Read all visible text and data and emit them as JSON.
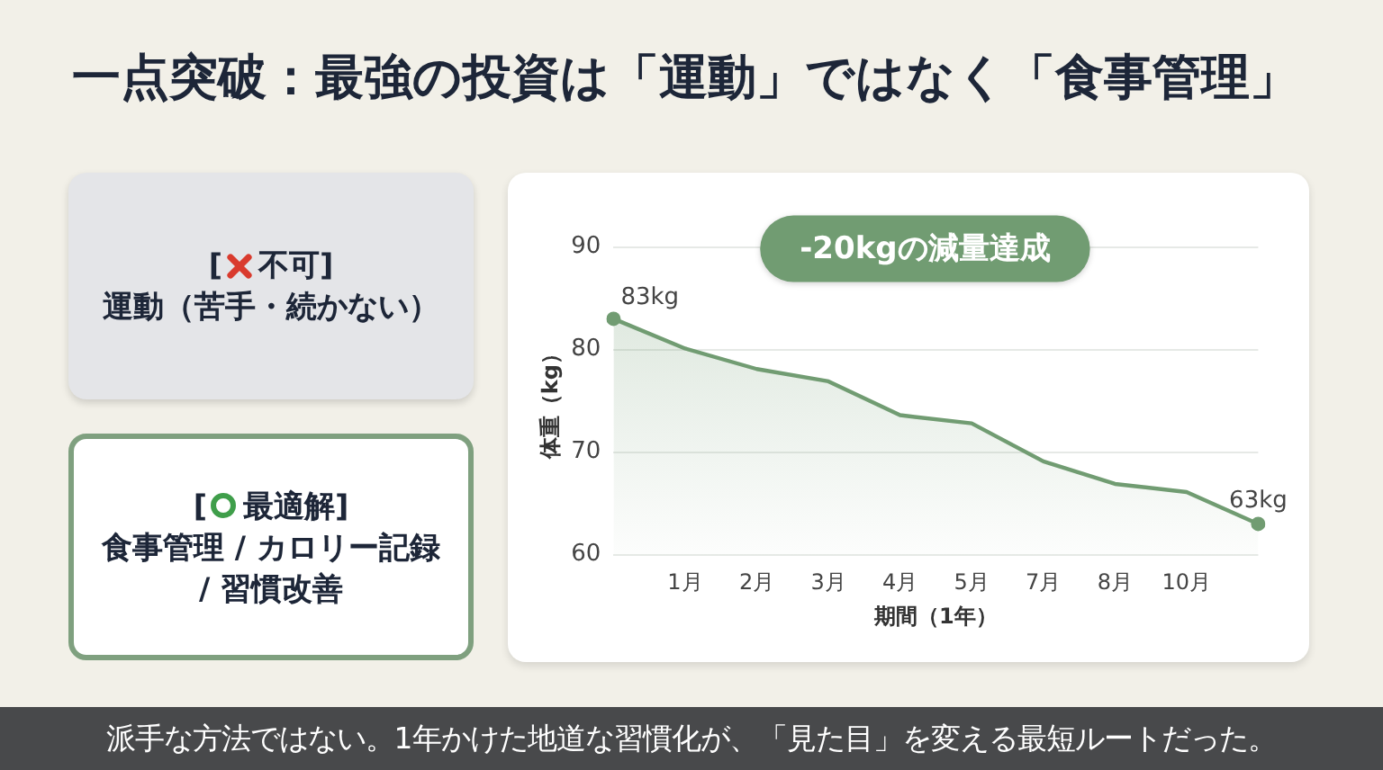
{
  "chart_data": [
    {
      "type": "other",
      "title": "一点突破：最強の投資は「運動」ではなく「食事管理」",
      "annotations": [
        "[不可]",
        "運動（苦手・続かない）",
        "[最適解]",
        "食事管理 / カロリー記録 / 習慣改善"
      ]
    },
    {
      "type": "area",
      "categories": [
        null,
        "1月",
        "2月",
        "3月",
        "4月",
        "5月",
        "7月",
        "8月",
        "10月",
        null
      ],
      "values": [
        83,
        80.1,
        78.1,
        76.9,
        73.6,
        72.8,
        69.1,
        66.9,
        66.1,
        63
      ],
      "value_labels": [
        "83kg",
        null,
        null,
        null,
        null,
        null,
        null,
        null,
        null,
        "63kg"
      ],
      "color": "#719c72",
      "xlabel": "期間（1年）",
      "ylabel": "体重（kg）",
      "ylim": [
        60,
        90
      ],
      "yticks": [
        60,
        70,
        80,
        90
      ],
      "grid": "y",
      "annotations": [
        "-20kgの減量達成",
        "派手な方法ではない。1年かけた地道な習慣化が、「見た目」を変える最短ルートだった。"
      ]
    }
  ]
}
